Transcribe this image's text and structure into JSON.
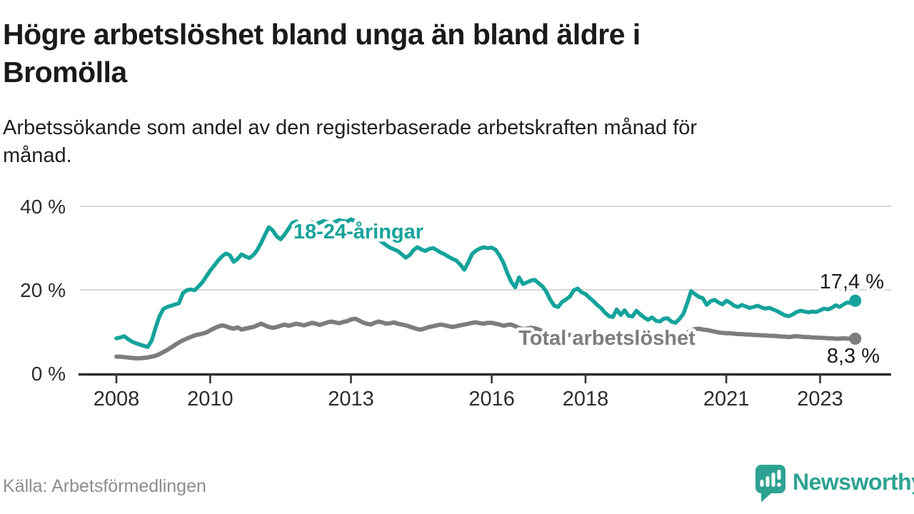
{
  "header": {
    "title_lines": [
      "Högre arbetslöshet bland unga än bland äldre i",
      "Bromölla"
    ],
    "subtitle_lines": [
      "Arbetssökande som andel av den registerbaserade arbetskraften månad för",
      "månad."
    ]
  },
  "footer": {
    "source": "Källa: Arbetsförmedlingen",
    "logo_text": "Newsworthy"
  },
  "colors": {
    "youth": "#14a39b",
    "total": "#7d7d7d",
    "grid": "#d9d9d9",
    "axis": "#2f2f2f",
    "tick_text": "#2d2d2d",
    "value_text": "#1d1d1d",
    "logo": "#2ea292",
    "background": "#ffffff"
  },
  "chart_data": {
    "type": "line",
    "title": "Högre arbetslöshet bland unga än bland äldre i Bromölla",
    "subtitle": "Arbetssökande som andel av den registerbaserade arbetskraften månad för månad.",
    "grid": "horizontal",
    "legend_position": "inline-labels",
    "x_start_year": 2008,
    "x_step_months": 1,
    "xlim": [
      2007.2,
      2024.5
    ],
    "ylim": [
      0,
      42
    ],
    "x_ticks": [
      "2008",
      "2010",
      "2013",
      "2016",
      "2018",
      "2021",
      "2023"
    ],
    "y_ticks": [
      {
        "value": 0,
        "label": "0 %"
      },
      {
        "value": 20,
        "label": "20 %"
      },
      {
        "value": 40,
        "label": "40 %"
      }
    ],
    "series": [
      {
        "name": "18-24-åringar",
        "end_label": "17,4 %",
        "end_value": 17.4,
        "color": "#14a39b",
        "values": [
          8.4,
          8.6,
          8.9,
          8.2,
          7.6,
          7.2,
          6.9,
          6.6,
          6.3,
          7.8,
          10.8,
          13.6,
          15.4,
          15.9,
          16.2,
          16.5,
          16.8,
          19.2,
          19.9,
          20.1,
          19.9,
          20.8,
          21.8,
          23.2,
          24.6,
          25.8,
          27.0,
          28.0,
          28.7,
          28.3,
          26.7,
          27.4,
          28.5,
          28.0,
          27.6,
          28.3,
          29.5,
          31.2,
          33.2,
          35.0,
          34.2,
          32.8,
          32.1,
          33.2,
          34.6,
          36.0,
          36.4,
          35.8,
          35.3,
          35.8,
          36.2,
          35.7,
          36.1,
          36.5,
          36.2,
          35.9,
          36.3,
          36.7,
          36.5,
          36.3,
          36.9,
          36.4,
          35.7,
          35.1,
          34.4,
          33.7,
          33.0,
          32.2,
          31.4,
          30.7,
          30.1,
          29.7,
          29.3,
          28.5,
          27.7,
          28.3,
          29.5,
          30.2,
          29.7,
          29.3,
          29.8,
          30.0,
          29.5,
          28.9,
          28.5,
          27.9,
          27.4,
          27.0,
          26.0,
          24.8,
          26.6,
          28.6,
          29.4,
          29.9,
          30.2,
          30.0,
          30.1,
          29.6,
          28.2,
          26.5,
          24.0,
          21.9,
          20.6,
          23.0,
          21.4,
          21.8,
          22.2,
          22.4,
          21.6,
          20.8,
          19.5,
          17.6,
          16.2,
          15.9,
          17.1,
          17.7,
          18.4,
          19.9,
          20.3,
          19.4,
          19.0,
          18.1,
          17.3,
          16.4,
          15.6,
          14.5,
          13.7,
          13.5,
          15.3,
          14.0,
          15.1,
          13.8,
          13.6,
          15.0,
          14.1,
          13.4,
          12.8,
          13.4,
          12.6,
          12.4,
          13.1,
          13.2,
          12.4,
          12.1,
          13.0,
          14.2,
          16.8,
          19.7,
          19.0,
          18.3,
          18.0,
          16.4,
          17.3,
          17.6,
          17.0,
          16.5,
          17.4,
          16.9,
          16.2,
          15.9,
          16.4,
          16.0,
          15.7,
          15.9,
          16.2,
          15.8,
          15.5,
          15.7,
          15.3,
          14.9,
          14.4,
          13.9,
          13.7,
          14.1,
          14.7,
          15.0,
          14.8,
          14.6,
          14.8,
          14.7,
          15.1,
          15.5,
          15.3,
          15.7,
          16.3,
          15.9,
          16.5,
          17.0,
          16.8,
          17.4
        ]
      },
      {
        "name": "Total arbetslöshet",
        "end_label": "8,3 %",
        "end_value": 8.3,
        "color": "#7d7d7d",
        "values": [
          4.0,
          4.0,
          3.9,
          3.8,
          3.7,
          3.6,
          3.6,
          3.7,
          3.8,
          4.0,
          4.2,
          4.6,
          5.1,
          5.6,
          6.2,
          6.8,
          7.4,
          7.9,
          8.3,
          8.7,
          9.1,
          9.3,
          9.5,
          9.8,
          10.3,
          10.8,
          11.2,
          11.5,
          11.3,
          10.9,
          10.7,
          11.0,
          10.5,
          10.7,
          10.9,
          11.1,
          11.5,
          11.9,
          11.5,
          11.1,
          10.9,
          11.1,
          11.4,
          11.7,
          11.4,
          11.6,
          11.9,
          11.7,
          11.5,
          11.8,
          12.1,
          11.9,
          11.6,
          11.9,
          12.2,
          12.4,
          12.2,
          12.0,
          12.3,
          12.5,
          12.9,
          13.1,
          12.7,
          12.2,
          11.9,
          11.7,
          12.1,
          12.4,
          12.2,
          11.9,
          12.0,
          12.2,
          11.9,
          11.7,
          11.5,
          11.2,
          10.9,
          10.6,
          10.5,
          10.8,
          11.1,
          11.3,
          11.5,
          11.7,
          11.5,
          11.3,
          11.1,
          11.3,
          11.5,
          11.7,
          11.9,
          12.1,
          12.2,
          12.0,
          11.9,
          12.1,
          12.1,
          11.9,
          11.7,
          11.4,
          11.6,
          11.7,
          11.3,
          10.9,
          10.6,
          10.7,
          10.9,
          10.8,
          10.5,
          10.1,
          9.7,
          9.2,
          9.4,
          9.6,
          9.3,
          9.1,
          9.2,
          9.0,
          8.8,
          8.6,
          8.6,
          8.5,
          8.4,
          8.3,
          8.2,
          8.1,
          8.0,
          8.0,
          8.1,
          8.2,
          8.3,
          8.4,
          8.3,
          8.2,
          8.1,
          8.0,
          8.0,
          8.1,
          8.2,
          8.3,
          8.4,
          8.5,
          8.6,
          8.7,
          8.9,
          9.2,
          9.7,
          10.3,
          10.6,
          10.7,
          10.5,
          10.4,
          10.2,
          10.0,
          9.8,
          9.7,
          9.6,
          9.6,
          9.5,
          9.4,
          9.4,
          9.3,
          9.3,
          9.2,
          9.2,
          9.1,
          9.1,
          9.0,
          9.0,
          8.9,
          8.8,
          8.8,
          8.7,
          8.8,
          8.9,
          8.8,
          8.7,
          8.7,
          8.6,
          8.6,
          8.5,
          8.5,
          8.4,
          8.4,
          8.3,
          8.3,
          8.4,
          8.3,
          8.3,
          8.3
        ]
      }
    ]
  }
}
